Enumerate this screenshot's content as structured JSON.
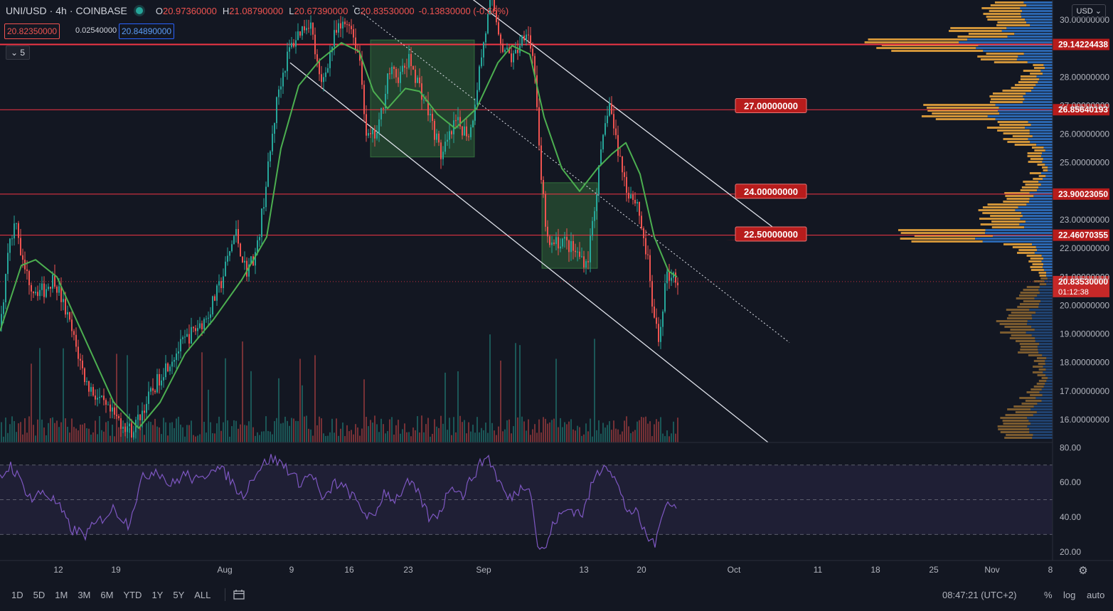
{
  "header": {
    "symbol": "UNI/USD",
    "interval": "4h",
    "exchange": "COINBASE",
    "open_label": "O",
    "open": "20.97360000",
    "high_label": "H",
    "high": "21.08790000",
    "low_label": "L",
    "low": "20.67390000",
    "close_label": "C",
    "close": "20.83530000",
    "change": "-0.13830000 (-0.66%)"
  },
  "quote": {
    "bid": "20.82350000",
    "spread": "0.02540000",
    "ask": "20.84890000"
  },
  "indicator_toggle": {
    "icon": "chevron-down-icon",
    "count": "5"
  },
  "currency_selector": "USD",
  "bottom_toolbar": {
    "ranges": [
      "1D",
      "5D",
      "1M",
      "3M",
      "6M",
      "YTD",
      "1Y",
      "5Y",
      "ALL"
    ],
    "compare_icon": "calendar-range-icon",
    "clock": "08:47:21 (UTC+2)",
    "percent_label": "%",
    "log_label": "log",
    "auto_label": "auto"
  },
  "colors": {
    "background": "#131722",
    "up": "#26a69a",
    "down": "#ef5350",
    "ma": "#4caf50",
    "rsi": "#7e57c2",
    "hline": "#f23645",
    "vp_up": "#e6a23c",
    "vp_down": "#2f6fbf"
  },
  "chart_data": [
    {
      "type": "candlestick",
      "panel": "price",
      "y_axis_ticks": [
        "30.00000000",
        "28.00000000",
        "27.00000000",
        "26.00000000",
        "25.00000000",
        "23.00000000",
        "22.00000000",
        "21.00000000",
        "20.00000000",
        "19.00000000",
        "18.00000000",
        "17.00000000",
        "16.00000000"
      ],
      "y_tick_values": [
        30,
        28,
        27,
        26,
        25,
        23,
        22,
        21,
        20,
        19,
        18,
        17,
        16
      ],
      "ylim": [
        15.2,
        30.7
      ],
      "x_axis_ticks": [
        "12",
        "19",
        "Aug",
        "9",
        "16",
        "23",
        "Sep",
        "13",
        "20",
        "Oct",
        "11",
        "18",
        "25",
        "Nov",
        "8"
      ],
      "price_path": [
        {
          "i": 0,
          "p": 19.2
        },
        {
          "i": 10,
          "p": 22.0
        },
        {
          "i": 22,
          "p": 23.1
        },
        {
          "i": 30,
          "p": 21.5
        },
        {
          "i": 45,
          "p": 20.6
        },
        {
          "i": 60,
          "p": 20.5
        },
        {
          "i": 75,
          "p": 21.0
        },
        {
          "i": 95,
          "p": 19.5
        },
        {
          "i": 120,
          "p": 17.3
        },
        {
          "i": 150,
          "p": 16.3
        },
        {
          "i": 185,
          "p": 15.6
        },
        {
          "i": 205,
          "p": 16.6
        },
        {
          "i": 230,
          "p": 17.8
        },
        {
          "i": 260,
          "p": 18.8
        },
        {
          "i": 290,
          "p": 19.6
        },
        {
          "i": 310,
          "p": 20.8
        },
        {
          "i": 330,
          "p": 22.6
        },
        {
          "i": 345,
          "p": 21.2
        },
        {
          "i": 360,
          "p": 21.9
        },
        {
          "i": 375,
          "p": 24.6
        },
        {
          "i": 390,
          "p": 27.5
        },
        {
          "i": 405,
          "p": 28.9
        },
        {
          "i": 420,
          "p": 29.6
        },
        {
          "i": 435,
          "p": 30.0
        },
        {
          "i": 450,
          "p": 27.6
        },
        {
          "i": 470,
          "p": 29.5
        },
        {
          "i": 490,
          "p": 30.0
        },
        {
          "i": 505,
          "p": 28.6
        },
        {
          "i": 515,
          "p": 25.8
        },
        {
          "i": 530,
          "p": 26.0
        },
        {
          "i": 545,
          "p": 28.2
        },
        {
          "i": 560,
          "p": 28.0
        },
        {
          "i": 575,
          "p": 28.6
        },
        {
          "i": 590,
          "p": 27.6
        },
        {
          "i": 605,
          "p": 26.5
        },
        {
          "i": 620,
          "p": 25.2
        },
        {
          "i": 640,
          "p": 26.4
        },
        {
          "i": 660,
          "p": 26.0
        },
        {
          "i": 675,
          "p": 28.6
        },
        {
          "i": 690,
          "p": 30.8
        },
        {
          "i": 705,
          "p": 29.1
        },
        {
          "i": 720,
          "p": 28.6
        },
        {
          "i": 740,
          "p": 29.8
        },
        {
          "i": 752,
          "p": 28.1
        },
        {
          "i": 758,
          "p": 24.8
        },
        {
          "i": 770,
          "p": 22.0
        },
        {
          "i": 790,
          "p": 22.3
        },
        {
          "i": 810,
          "p": 21.8
        },
        {
          "i": 825,
          "p": 21.5
        },
        {
          "i": 840,
          "p": 24.5
        },
        {
          "i": 855,
          "p": 27.2
        },
        {
          "i": 865,
          "p": 25.8
        },
        {
          "i": 880,
          "p": 24.1
        },
        {
          "i": 895,
          "p": 23.6
        },
        {
          "i": 910,
          "p": 21.5
        },
        {
          "i": 918,
          "p": 19.6
        },
        {
          "i": 925,
          "p": 18.7
        },
        {
          "i": 935,
          "p": 20.9
        },
        {
          "i": 945,
          "p": 21.2
        },
        {
          "i": 952,
          "p": 20.8
        }
      ],
      "ma_path": [
        {
          "i": 0,
          "p": 19.1
        },
        {
          "i": 30,
          "p": 21.4
        },
        {
          "i": 50,
          "p": 21.6
        },
        {
          "i": 80,
          "p": 21.0
        },
        {
          "i": 120,
          "p": 18.8
        },
        {
          "i": 160,
          "p": 16.6
        },
        {
          "i": 195,
          "p": 15.7
        },
        {
          "i": 225,
          "p": 16.6
        },
        {
          "i": 260,
          "p": 18.3
        },
        {
          "i": 300,
          "p": 19.5
        },
        {
          "i": 340,
          "p": 20.9
        },
        {
          "i": 375,
          "p": 22.4
        },
        {
          "i": 395,
          "p": 25.5
        },
        {
          "i": 420,
          "p": 27.7
        },
        {
          "i": 450,
          "p": 28.6
        },
        {
          "i": 480,
          "p": 29.2
        },
        {
          "i": 505,
          "p": 28.9
        },
        {
          "i": 525,
          "p": 27.5
        },
        {
          "i": 545,
          "p": 26.9
        },
        {
          "i": 570,
          "p": 27.6
        },
        {
          "i": 590,
          "p": 27.5
        },
        {
          "i": 615,
          "p": 26.7
        },
        {
          "i": 640,
          "p": 26.2
        },
        {
          "i": 670,
          "p": 26.9
        },
        {
          "i": 700,
          "p": 28.5
        },
        {
          "i": 720,
          "p": 29.1
        },
        {
          "i": 745,
          "p": 28.8
        },
        {
          "i": 765,
          "p": 26.6
        },
        {
          "i": 790,
          "p": 24.8
        },
        {
          "i": 815,
          "p": 24.0
        },
        {
          "i": 840,
          "p": 24.8
        },
        {
          "i": 860,
          "p": 25.3
        },
        {
          "i": 880,
          "p": 25.7
        },
        {
          "i": 900,
          "p": 24.6
        },
        {
          "i": 920,
          "p": 22.4
        },
        {
          "i": 940,
          "p": 21.2
        },
        {
          "i": 952,
          "p": 21.0
        }
      ],
      "horizontal_levels": [
        29.14224438,
        26.85640193,
        23.9002305,
        22.46070355
      ],
      "level_labels": [
        "29.14224438",
        "26.85640193",
        "23.90023050",
        "22.46070355"
      ],
      "last_price": 20.8353,
      "last_price_label": "20.83530000",
      "countdown": "01:12:38",
      "callouts": [
        {
          "text": "27.00000000",
          "price": 27.0
        },
        {
          "text": "24.00000000",
          "price": 24.0
        },
        {
          "text": "22.50000000",
          "price": 22.5
        }
      ],
      "consolidation_boxes": [
        {
          "i0": 521,
          "i1": 667,
          "p_top": 29.3,
          "p_bottom": 25.2
        },
        {
          "i0": 762,
          "i1": 840,
          "p_top": 24.3,
          "p_bottom": 21.3
        }
      ],
      "channel": {
        "upper": [
          {
            "i": 650,
            "p": 31.0
          },
          {
            "i": 1110,
            "p": 22.3
          }
        ],
        "lower": [
          {
            "i": 408,
            "p": 28.5
          },
          {
            "i": 1080,
            "p": 15.2
          }
        ],
        "mid": [
          {
            "i": 496,
            "p": 30.5
          },
          {
            "i": 1110,
            "p": 18.7
          }
        ]
      }
    },
    {
      "type": "bar",
      "panel": "volume",
      "note_series": "volume histogram under price"
    },
    {
      "type": "line",
      "panel": "rsi",
      "y_axis_ticks": [
        "80.00",
        "60.00",
        "40.00",
        "20.00"
      ],
      "y_tick_values": [
        80,
        60,
        40,
        20
      ],
      "ylim": [
        15,
        83
      ],
      "bands": [
        70,
        50,
        30
      ],
      "rsi_path": [
        {
          "i": 0,
          "p": 62
        },
        {
          "i": 15,
          "p": 70
        },
        {
          "i": 30,
          "p": 60
        },
        {
          "i": 45,
          "p": 50
        },
        {
          "i": 60,
          "p": 55
        },
        {
          "i": 80,
          "p": 48
        },
        {
          "i": 100,
          "p": 33
        },
        {
          "i": 120,
          "p": 30
        },
        {
          "i": 140,
          "p": 38
        },
        {
          "i": 160,
          "p": 45
        },
        {
          "i": 180,
          "p": 36
        },
        {
          "i": 200,
          "p": 62
        },
        {
          "i": 220,
          "p": 68
        },
        {
          "i": 240,
          "p": 58
        },
        {
          "i": 260,
          "p": 65
        },
        {
          "i": 280,
          "p": 60
        },
        {
          "i": 300,
          "p": 70
        },
        {
          "i": 320,
          "p": 64
        },
        {
          "i": 340,
          "p": 52
        },
        {
          "i": 360,
          "p": 66
        },
        {
          "i": 380,
          "p": 74
        },
        {
          "i": 400,
          "p": 70
        },
        {
          "i": 420,
          "p": 60
        },
        {
          "i": 440,
          "p": 65
        },
        {
          "i": 455,
          "p": 48
        },
        {
          "i": 470,
          "p": 60
        },
        {
          "i": 490,
          "p": 55
        },
        {
          "i": 510,
          "p": 44
        },
        {
          "i": 525,
          "p": 38
        },
        {
          "i": 540,
          "p": 55
        },
        {
          "i": 555,
          "p": 50
        },
        {
          "i": 575,
          "p": 60
        },
        {
          "i": 590,
          "p": 52
        },
        {
          "i": 605,
          "p": 38
        },
        {
          "i": 620,
          "p": 44
        },
        {
          "i": 635,
          "p": 60
        },
        {
          "i": 650,
          "p": 52
        },
        {
          "i": 665,
          "p": 64
        },
        {
          "i": 685,
          "p": 76
        },
        {
          "i": 700,
          "p": 62
        },
        {
          "i": 715,
          "p": 50
        },
        {
          "i": 730,
          "p": 56
        },
        {
          "i": 745,
          "p": 60
        },
        {
          "i": 755,
          "p": 25
        },
        {
          "i": 765,
          "p": 20
        },
        {
          "i": 780,
          "p": 38
        },
        {
          "i": 800,
          "p": 45
        },
        {
          "i": 820,
          "p": 42
        },
        {
          "i": 835,
          "p": 62
        },
        {
          "i": 852,
          "p": 72
        },
        {
          "i": 865,
          "p": 62
        },
        {
          "i": 880,
          "p": 45
        },
        {
          "i": 895,
          "p": 42
        },
        {
          "i": 910,
          "p": 28
        },
        {
          "i": 923,
          "p": 25
        },
        {
          "i": 935,
          "p": 50
        },
        {
          "i": 945,
          "p": 48
        },
        {
          "i": 952,
          "p": 44
        }
      ]
    },
    {
      "type": "bar",
      "panel": "volume-profile",
      "note_series": "horizontal volume profile on right edge"
    }
  ]
}
